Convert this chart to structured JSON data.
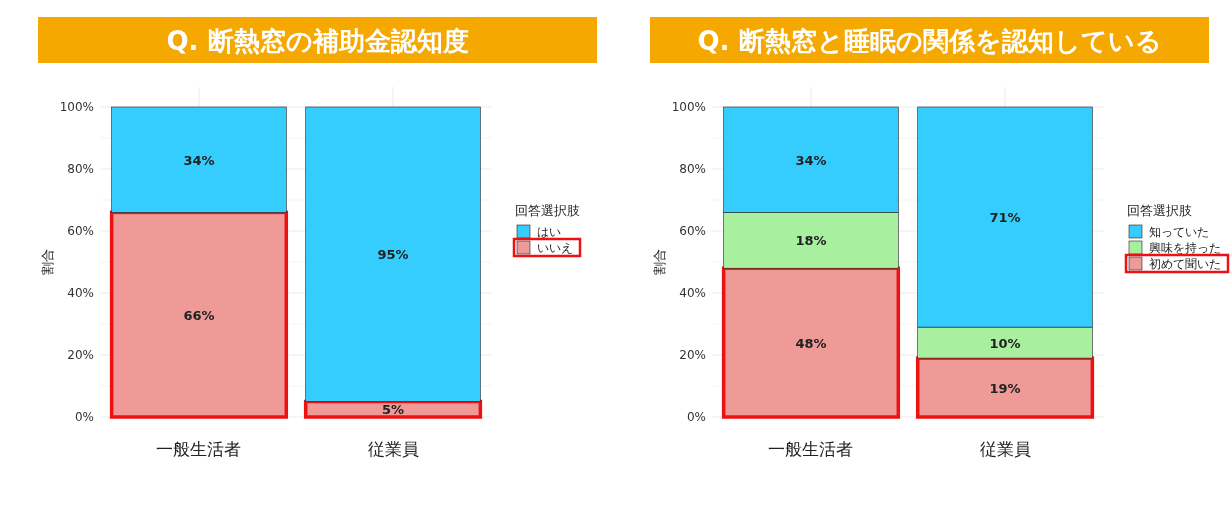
{
  "chart_data": [
    {
      "type": "bar",
      "title": "Q. 断熱窓の補助金認知度",
      "categories": [
        "一般生活者",
        "従業員"
      ],
      "stacked": true,
      "ylabel": "割合",
      "legend_title": "回答選択肢",
      "legend": "right",
      "grid": true,
      "ylim": [
        0,
        100
      ],
      "yticks": [
        {
          "value": 0,
          "label": "0%"
        },
        {
          "value": 20,
          "label": "20%"
        },
        {
          "value": 40,
          "label": "40%"
        },
        {
          "value": 60,
          "label": "60%"
        },
        {
          "value": 80,
          "label": "80%"
        },
        {
          "value": 100,
          "label": "100%"
        }
      ],
      "series": [
        {
          "name": "いいえ",
          "color": "#f09a98",
          "values": [
            66,
            5
          ],
          "value_labels": [
            "66%",
            "5%"
          ]
        },
        {
          "name": "はい",
          "color": "#35cdfd",
          "values": [
            34,
            95
          ],
          "value_labels": [
            "34%",
            "95%"
          ]
        }
      ]
    },
    {
      "type": "bar",
      "title": "Q. 断熱窓と睡眠の関係を認知している",
      "categories": [
        "一般生活者",
        "従業員"
      ],
      "stacked": true,
      "ylabel": "割合",
      "legend_title": "回答選択肢",
      "legend": "right",
      "grid": true,
      "ylim": [
        0,
        100
      ],
      "yticks": [
        {
          "value": 0,
          "label": "0%"
        },
        {
          "value": 20,
          "label": "20%"
        },
        {
          "value": 40,
          "label": "40%"
        },
        {
          "value": 60,
          "label": "60%"
        },
        {
          "value": 80,
          "label": "80%"
        },
        {
          "value": 100,
          "label": "100%"
        }
      ],
      "series": [
        {
          "name": "初めて聞いた",
          "color": "#f09a98",
          "values": [
            48,
            19
          ],
          "value_labels": [
            "48%",
            "19%"
          ]
        },
        {
          "name": "興味を持った",
          "color": "#a8f0a0",
          "values": [
            18,
            10
          ],
          "value_labels": [
            "18%",
            "10%"
          ]
        },
        {
          "name": "知っていた",
          "color": "#35cdfd",
          "values": [
            34,
            71
          ],
          "value_labels": [
            "34%",
            "71%"
          ]
        }
      ]
    }
  ]
}
